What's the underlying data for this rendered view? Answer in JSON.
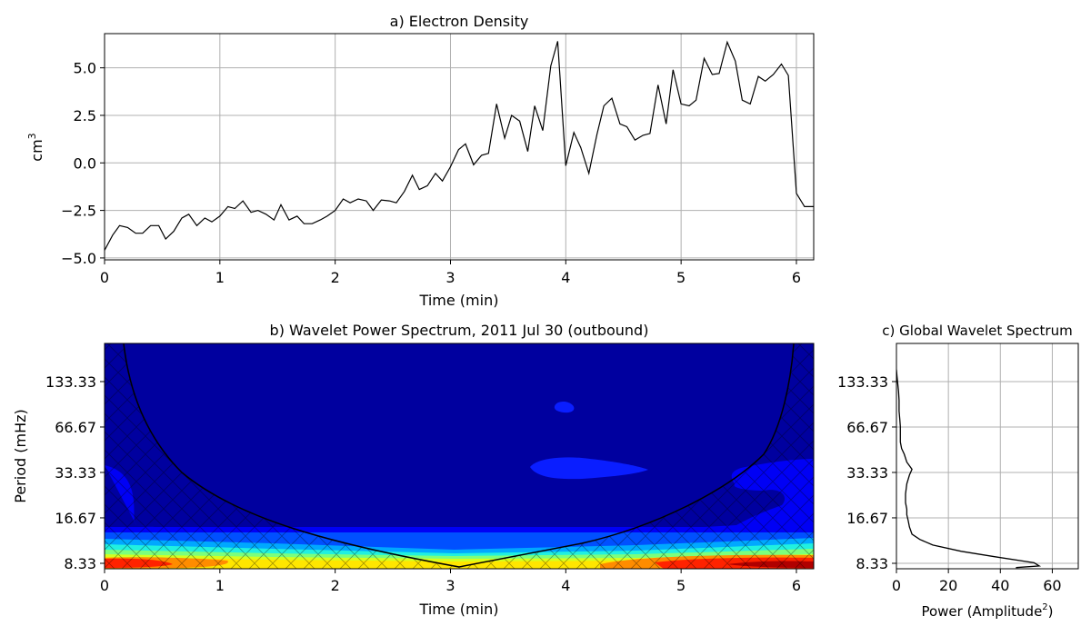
{
  "chart_data": [
    {
      "type": "line",
      "title": "a) Electron Density",
      "xlabel": "Time (min)",
      "ylabel": "cm",
      "ylabel_superscript": "3",
      "xlim": [
        0,
        6.15
      ],
      "ylim": [
        -5.1,
        6.8
      ],
      "xticks": [
        0,
        1,
        2,
        3,
        4,
        5,
        6
      ],
      "yticks": [
        -5.0,
        -2.5,
        0.0,
        2.5,
        5.0
      ],
      "xtick_labels": [
        "0",
        "1",
        "2",
        "3",
        "4",
        "5",
        "6"
      ],
      "ytick_labels": [
        "−5.0",
        "−2.5",
        "0.0",
        "2.5",
        "5.0"
      ],
      "grid": true,
      "line_color": "#000000",
      "series": [
        {
          "x": [
            0.0,
            0.07,
            0.13,
            0.2,
            0.27,
            0.33,
            0.4,
            0.47,
            0.53,
            0.6,
            0.67,
            0.73,
            0.8,
            0.87,
            0.93,
            1.0,
            1.07,
            1.13,
            1.2,
            1.27,
            1.33,
            1.4,
            1.47,
            1.53,
            1.6,
            1.67,
            1.73,
            1.8,
            1.87,
            1.93,
            2.0,
            2.07,
            2.13,
            2.2,
            2.27,
            2.33,
            2.4,
            2.47,
            2.53,
            2.6,
            2.67,
            2.73,
            2.8,
            2.87,
            2.93,
            3.0,
            3.07,
            3.13,
            3.2,
            3.27,
            3.33,
            3.4,
            3.47,
            3.53,
            3.6,
            3.67,
            3.73,
            3.8,
            3.87,
            3.93,
            4.0,
            4.07,
            4.13,
            4.2,
            4.27,
            4.33,
            4.4,
            4.47,
            4.53,
            4.6,
            4.67,
            4.73,
            4.8,
            4.87,
            4.93,
            5.0,
            5.07,
            5.13,
            5.2,
            5.27,
            5.33,
            5.4,
            5.47,
            5.53,
            5.6,
            5.67,
            5.73,
            5.8,
            5.87,
            5.93,
            6.0,
            6.07,
            6.15
          ],
          "y": [
            -4.6,
            -3.8,
            -3.3,
            -3.4,
            -3.7,
            -3.7,
            -3.3,
            -3.3,
            -4.0,
            -3.6,
            -2.9,
            -2.7,
            -3.3,
            -2.9,
            -3.1,
            -2.8,
            -2.3,
            -2.4,
            -2.0,
            -2.6,
            -2.5,
            -2.7,
            -3.0,
            -2.2,
            -3.0,
            -2.8,
            -3.2,
            -3.2,
            -3.0,
            -2.8,
            -2.5,
            -1.9,
            -2.1,
            -1.9,
            -2.0,
            -2.5,
            -1.95,
            -2.0,
            -2.1,
            -1.5,
            -0.65,
            -1.4,
            -1.2,
            -0.55,
            -0.95,
            -0.2,
            0.7,
            1.0,
            -0.1,
            0.4,
            0.5,
            3.1,
            1.3,
            2.5,
            2.2,
            0.6,
            3.0,
            1.7,
            5.1,
            6.4,
            -0.15,
            1.6,
            0.8,
            -0.55,
            1.5,
            3.0,
            3.4,
            2.05,
            1.9,
            1.2,
            1.45,
            1.55,
            4.1,
            2.05,
            4.9,
            3.1,
            3.0,
            3.3,
            5.5,
            4.65,
            4.7,
            6.35,
            5.35,
            3.3,
            3.1,
            4.55,
            4.3,
            4.65,
            5.2,
            4.6,
            -1.6,
            -2.3,
            -2.3
          ]
        }
      ]
    },
    {
      "type": "heatmap",
      "title": "b) Wavelet Power Spectrum, 2011 Jul 30 (outbound)",
      "xlabel": "Time (min)",
      "ylabel": "Period (mHz)",
      "xlim": [
        0,
        6.15
      ],
      "xticks": [
        0,
        1,
        2,
        3,
        4,
        5,
        6
      ],
      "xtick_labels": [
        "0",
        "1",
        "2",
        "3",
        "4",
        "5",
        "6"
      ],
      "yticks": [
        8.33,
        16.67,
        33.33,
        66.67,
        133.33
      ],
      "ytick_labels": [
        "8.33",
        "16.67",
        "33.33",
        "66.67",
        "133.33"
      ],
      "yscale": "log",
      "colormap": "jet",
      "cone_of_influence": true,
      "hatched_outside_cone": true,
      "cone_color": "#000000"
    },
    {
      "type": "line",
      "title": "c) Global Wavelet Spectrum",
      "xlabel": "Power (Amplitude",
      "xlabel_superscript": "2",
      "xlabel_suffix": ")",
      "xlim": [
        0,
        70
      ],
      "xticks": [
        0,
        20,
        40,
        60
      ],
      "xtick_labels": [
        "0",
        "20",
        "40",
        "60"
      ],
      "yticks": [
        8.33,
        16.67,
        33.33,
        66.67,
        133.33
      ],
      "ytick_labels": [
        "8.33",
        "16.67",
        "33.33",
        "66.67",
        "133.33"
      ],
      "yscale": "log",
      "grid": true,
      "line_color": "#000000",
      "series": [
        {
          "power": [
            46,
            55,
            53,
            38,
            25,
            14,
            9,
            6,
            5,
            4.5,
            4,
            4,
            3.5,
            3.5,
            4,
            5,
            6,
            4,
            3,
            2,
            1.5,
            1.5,
            1.5,
            1.3,
            1,
            1,
            0.8,
            0.5,
            0.2,
            0
          ],
          "period": [
            7.8,
            8.0,
            8.4,
            9.2,
            10.0,
            11.0,
            12.0,
            13.0,
            14.5,
            16.0,
            17.5,
            19.0,
            21.0,
            24.0,
            28.0,
            32.0,
            35.0,
            39.0,
            44.0,
            48.0,
            53.0,
            60.0,
            67.0,
            75.0,
            85.0,
            100.0,
            115.0,
            130.0,
            145.0,
            160.0
          ]
        }
      ]
    }
  ]
}
